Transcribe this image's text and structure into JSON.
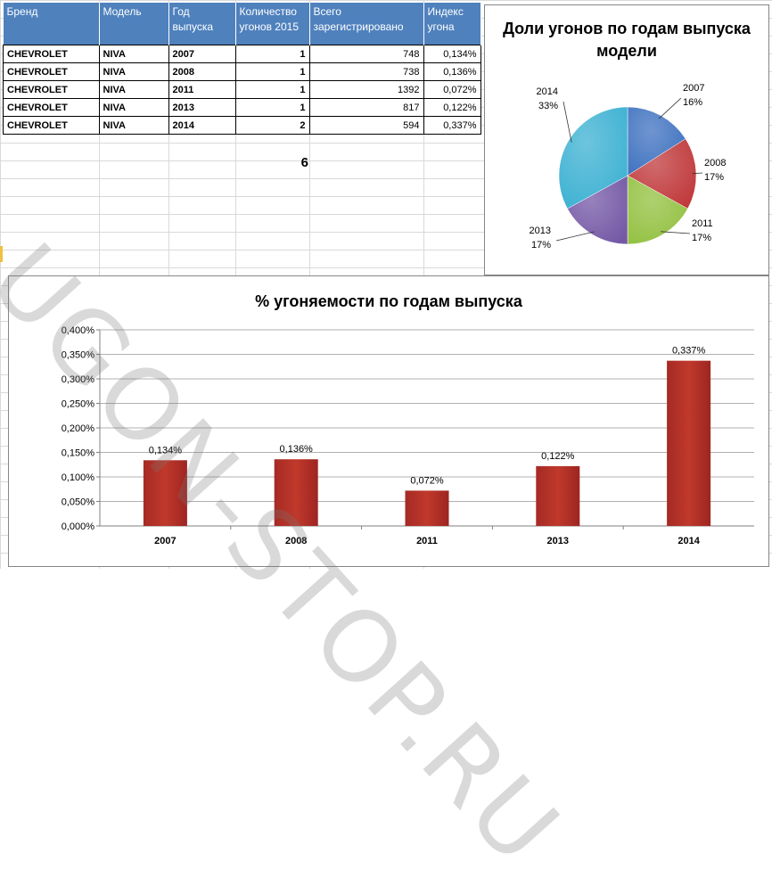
{
  "table": {
    "headers": [
      "Бренд",
      "Модель",
      "Год выпуска",
      "Количество угонов 2015",
      "Всего зарегистрировано",
      "Индекс угона"
    ],
    "rows": [
      {
        "brand": "CHEVROLET",
        "model": "NIVA",
        "year": "2007",
        "thefts": "1",
        "registered": "748",
        "index": "0,134%"
      },
      {
        "brand": "CHEVROLET",
        "model": "NIVA",
        "year": "2008",
        "thefts": "1",
        "registered": "738",
        "index": "0,136%"
      },
      {
        "brand": "CHEVROLET",
        "model": "NIVA",
        "year": "2011",
        "thefts": "1",
        "registered": "1392",
        "index": "0,072%"
      },
      {
        "brand": "CHEVROLET",
        "model": "NIVA",
        "year": "2013",
        "thefts": "1",
        "registered": "817",
        "index": "0,122%"
      },
      {
        "brand": "CHEVROLET",
        "model": "NIVA",
        "year": "2014",
        "thefts": "2",
        "registered": "594",
        "index": "0,337%"
      }
    ],
    "total": "6"
  },
  "watermark": "UGON-STOP.RU",
  "colors": {
    "header_bg": "#4f81bd",
    "bar": "#c0392b",
    "pie": [
      "#3f72c0",
      "#c0393b",
      "#93c141",
      "#7559a6",
      "#3db1d2"
    ]
  },
  "chart_data": [
    {
      "type": "pie",
      "title": "Доли угонов по годам выпуска модели",
      "categories": [
        "2007",
        "2008",
        "2011",
        "2013",
        "2014"
      ],
      "values": [
        16,
        17,
        17,
        17,
        33
      ],
      "labels": [
        "16%",
        "17%",
        "17%",
        "17%",
        "33%"
      ]
    },
    {
      "type": "bar",
      "title": "% угоняемости по годам выпуска",
      "categories": [
        "2007",
        "2008",
        "2011",
        "2013",
        "2014"
      ],
      "values": [
        0.134,
        0.136,
        0.072,
        0.122,
        0.337
      ],
      "data_labels": [
        "0,134%",
        "0,136%",
        "0,072%",
        "0,122%",
        "0,337%"
      ],
      "ylim": [
        0,
        0.4
      ],
      "yticks": [
        "0,000%",
        "0,050%",
        "0,100%",
        "0,150%",
        "0,200%",
        "0,250%",
        "0,300%",
        "0,350%",
        "0,400%"
      ],
      "grid": true
    }
  ]
}
